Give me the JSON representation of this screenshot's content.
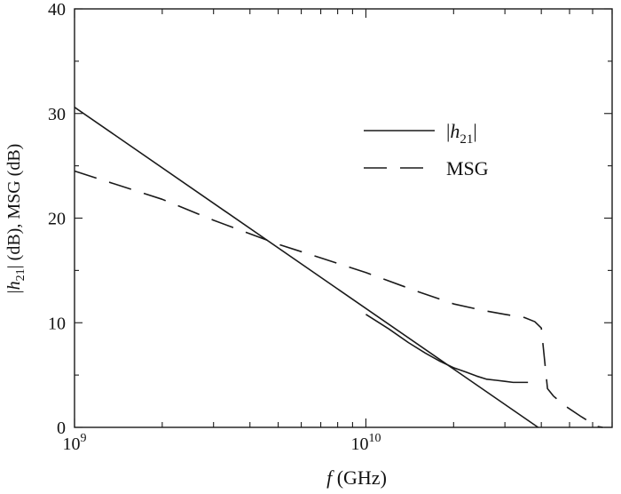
{
  "chart_data": {
    "type": "line",
    "x_scale": "log",
    "xlim": [
      1000000000,
      70000000000
    ],
    "ylim": [
      0,
      40
    ],
    "xlabel": {
      "symbol": "f",
      "rest": " (GHz)"
    },
    "ylabel": "|h21| (dB), MSG (dB)",
    "grid": false,
    "legend_position": "top-right",
    "x_ticks": [
      {
        "value": 1000000000,
        "base": "10",
        "exp": "9"
      },
      {
        "value": 10000000000,
        "base": "10",
        "exp": "10"
      }
    ],
    "y_ticks": [
      0,
      10,
      20,
      30,
      40
    ],
    "series": [
      {
        "id": "h21-ideal",
        "name": "|h21|",
        "style": "solid",
        "color": "#1a1a1a",
        "x": [
          1000000000,
          39000000000
        ],
        "y": [
          30.6,
          0
        ]
      },
      {
        "id": "h21-measured",
        "style": "solid",
        "color": "#1a1a1a",
        "x": [
          10000000000,
          12000000000,
          14000000000,
          16000000000,
          18000000000,
          20000000000,
          22000000000,
          24000000000,
          26000000000,
          28000000000,
          30000000000,
          32000000000,
          34000000000,
          36000000000
        ],
        "y": [
          10.8,
          9.4,
          8.1,
          7.1,
          6.3,
          5.7,
          5.3,
          4.9,
          4.6,
          4.5,
          4.4,
          4.3,
          4.3,
          4.3
        ]
      },
      {
        "id": "msg",
        "name": "MSG",
        "style": "dashed",
        "color": "#1a1a1a",
        "x": [
          1000000000,
          2000000000,
          3000000000,
          4000000000,
          5000000000,
          7000000000,
          10000000000,
          15000000000,
          20000000000,
          25000000000,
          30000000000,
          35000000000,
          38000000000,
          40000000000,
          42000000000,
          44000000000,
          48000000000,
          55000000000,
          62000000000,
          65000000000
        ],
        "y": [
          24.5,
          21.8,
          19.8,
          18.5,
          17.5,
          16.2,
          14.8,
          13.0,
          11.8,
          11.2,
          10.8,
          10.5,
          10.1,
          9.5,
          3.7,
          3.0,
          2.1,
          1.0,
          0.1,
          0
        ]
      }
    ]
  },
  "legend": {
    "h21": {
      "bar": "|",
      "symbol": "h",
      "sub": "21",
      "bar_end": "|"
    },
    "msg": {
      "label": "MSG"
    }
  },
  "ylabel_parts": {
    "bar": "|",
    "symbol": "h",
    "sub": "21",
    "rest": "| (dB), MSG (dB)"
  }
}
